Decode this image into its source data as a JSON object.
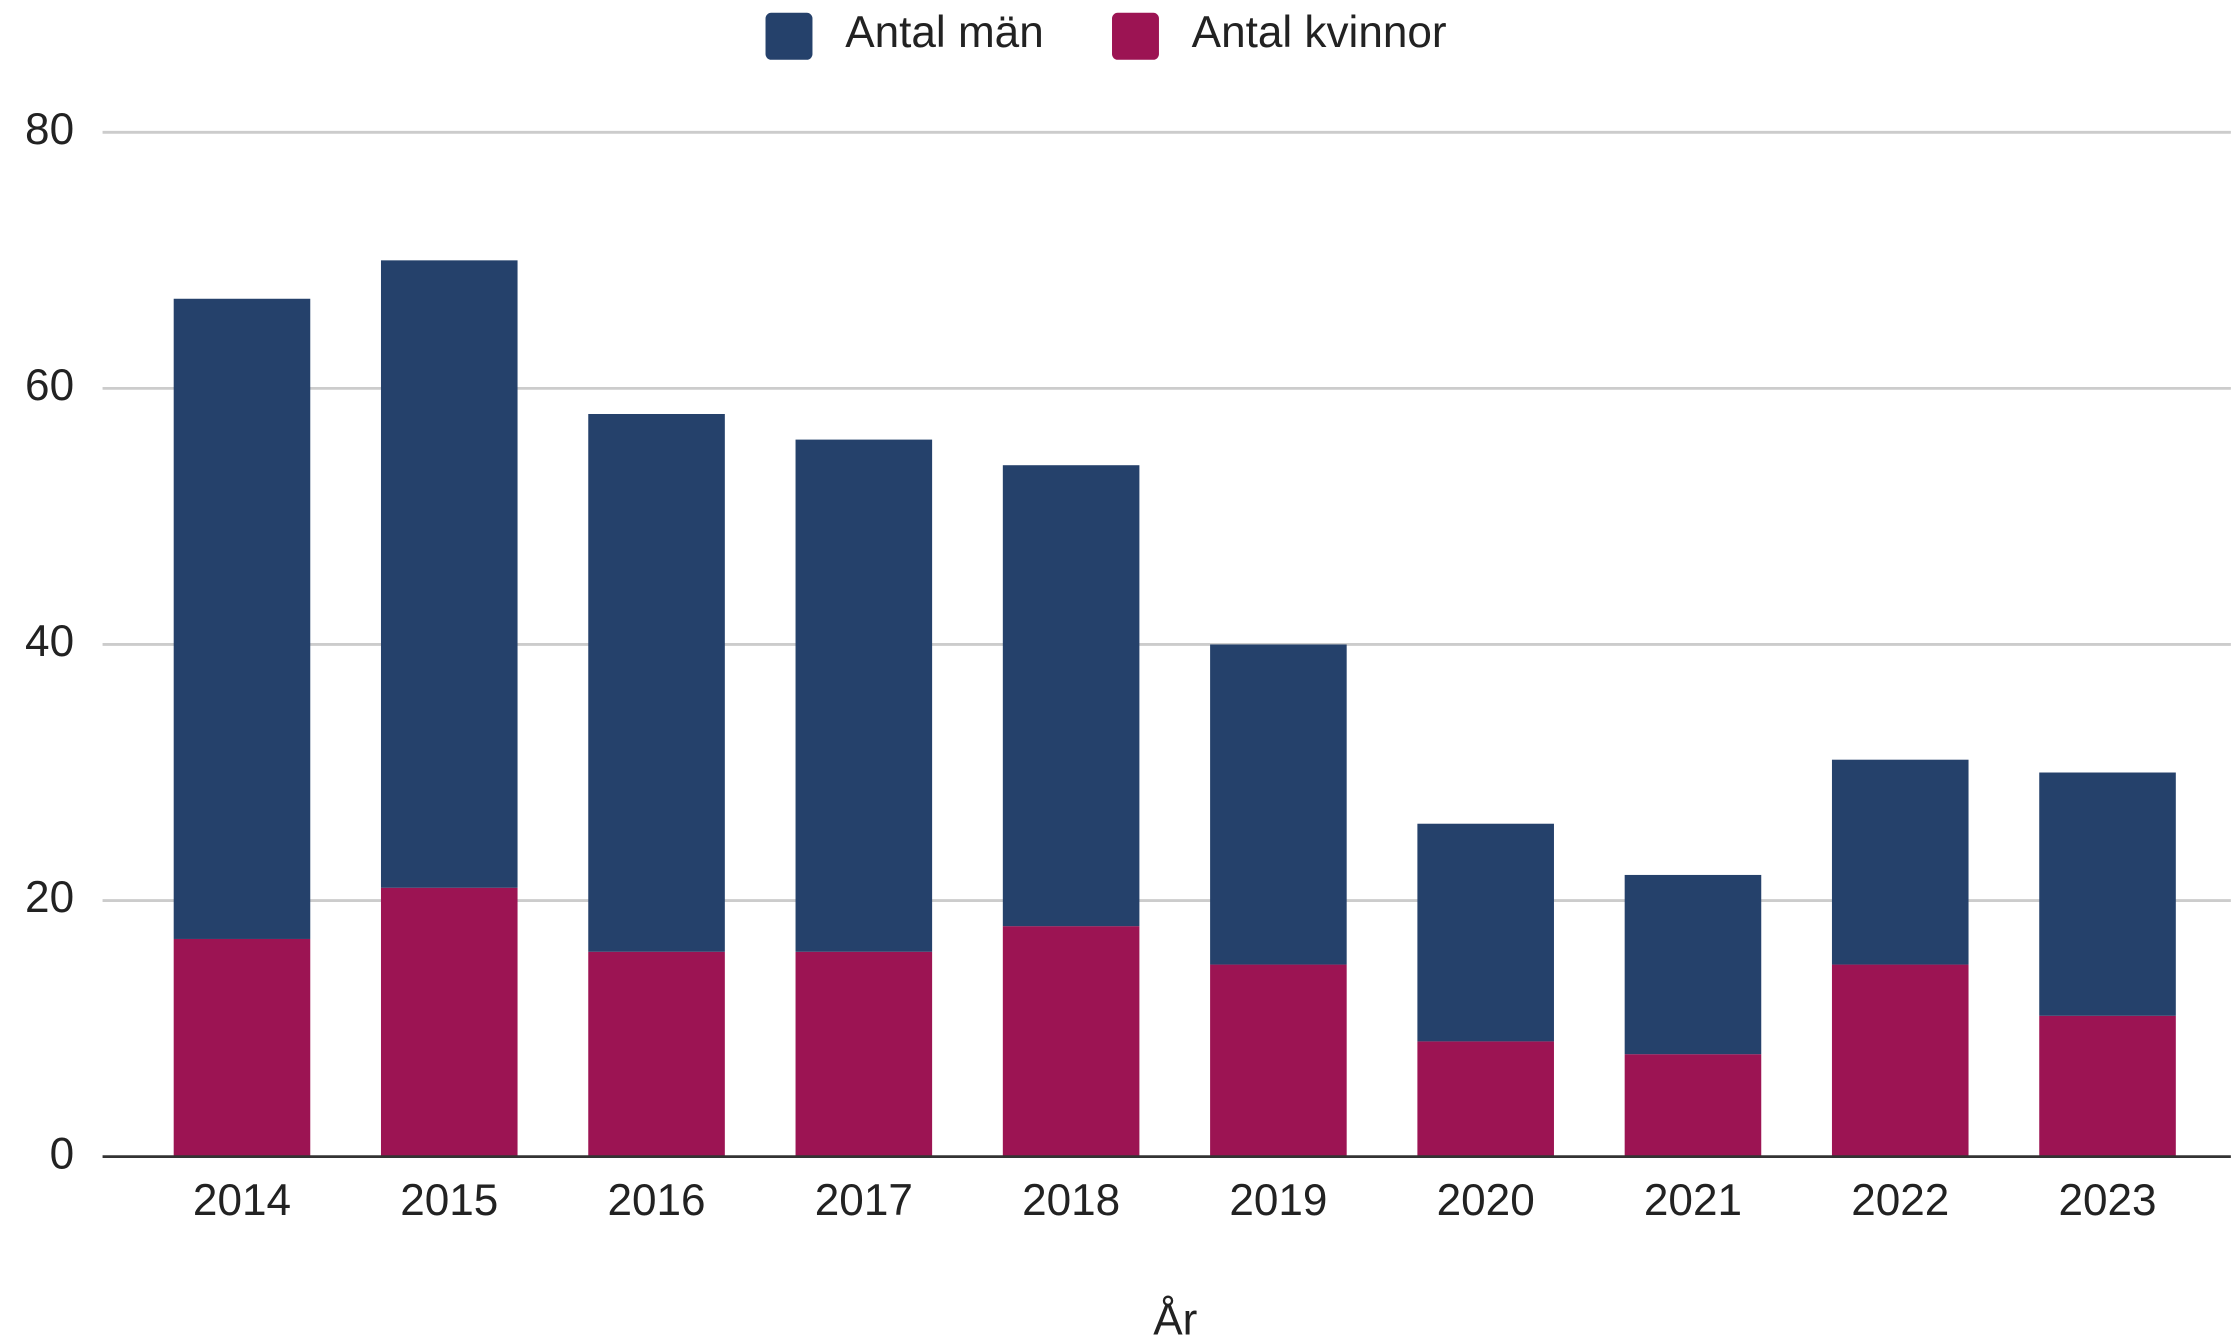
{
  "chart_data": {
    "type": "stacked_bar",
    "categories": [
      "2014",
      "2015",
      "2016",
      "2017",
      "2018",
      "2019",
      "2020",
      "2021",
      "2022",
      "2023"
    ],
    "series": [
      {
        "name": "Antal män",
        "color": "#25416b",
        "values": [
          50,
          49,
          42,
          40,
          36,
          25,
          17,
          14,
          16,
          19
        ]
      },
      {
        "name": "Antal kvinnor",
        "color": "#9c1453",
        "values": [
          17,
          21,
          16,
          16,
          18,
          15,
          9,
          8,
          15,
          11
        ]
      }
    ],
    "x_label": "År",
    "ylim": [
      0,
      80
    ],
    "yticks": [
      0,
      20,
      40,
      60,
      80
    ],
    "grid": true,
    "legend": "top"
  }
}
